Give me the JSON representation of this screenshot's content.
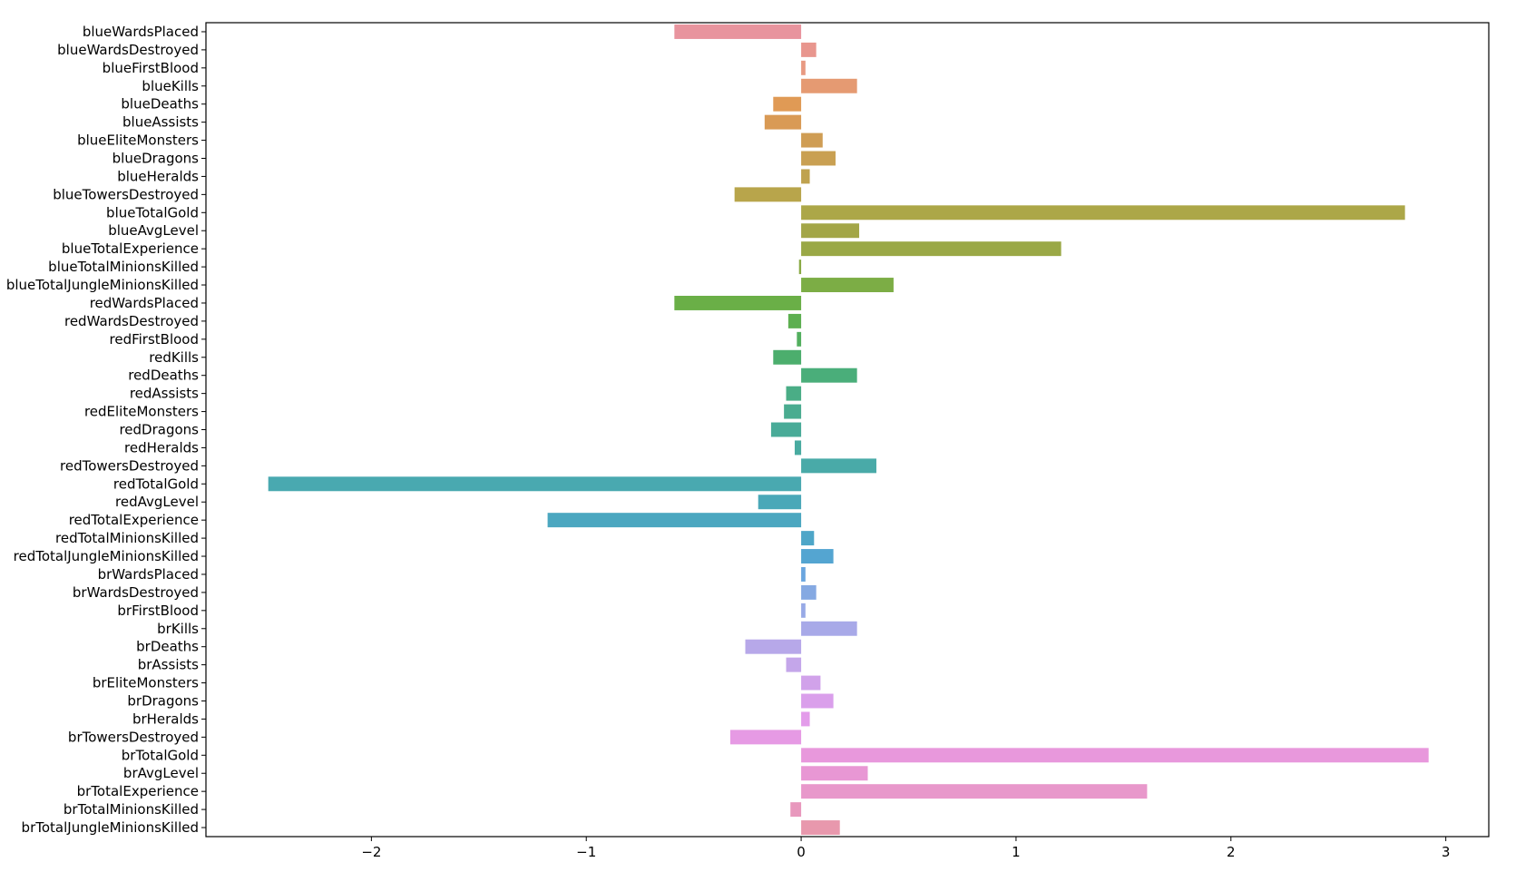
{
  "chart_data": {
    "type": "bar",
    "orientation": "horizontal",
    "title": "",
    "xlabel": "",
    "ylabel": "",
    "xlim": [
      -2.77,
      3.2
    ],
    "xticks": [
      -2,
      -1,
      0,
      1,
      2,
      3
    ],
    "xtick_labels": [
      "−2",
      "−1",
      "0",
      "1",
      "2",
      "3"
    ],
    "grid": false,
    "legend": "none",
    "categories": [
      "blueWardsPlaced",
      "blueWardsDestroyed",
      "blueFirstBlood",
      "blueKills",
      "blueDeaths",
      "blueAssists",
      "blueEliteMonsters",
      "blueDragons",
      "blueHeralds",
      "blueTowersDestroyed",
      "blueTotalGold",
      "blueAvgLevel",
      "blueTotalExperience",
      "blueTotalMinionsKilled",
      "blueTotalJungleMinionsKilled",
      "redWardsPlaced",
      "redWardsDestroyed",
      "redFirstBlood",
      "redKills",
      "redDeaths",
      "redAssists",
      "redEliteMonsters",
      "redDragons",
      "redHeralds",
      "redTowersDestroyed",
      "redTotalGold",
      "redAvgLevel",
      "redTotalExperience",
      "redTotalMinionsKilled",
      "redTotalJungleMinionsKilled",
      "brWardsPlaced",
      "brWardsDestroyed",
      "brFirstBlood",
      "brKills",
      "brDeaths",
      "brAssists",
      "brEliteMonsters",
      "brDragons",
      "brHeralds",
      "brTowersDestroyed",
      "brTotalGold",
      "brAvgLevel",
      "brTotalExperience",
      "brTotalMinionsKilled",
      "brTotalJungleMinionsKilled"
    ],
    "values": [
      -0.59,
      0.07,
      0.02,
      0.26,
      -0.13,
      -0.17,
      0.1,
      0.16,
      0.04,
      -0.31,
      2.81,
      0.27,
      1.21,
      -0.01,
      0.43,
      -0.59,
      -0.06,
      -0.02,
      -0.13,
      0.26,
      -0.07,
      -0.08,
      -0.14,
      -0.03,
      0.35,
      -2.48,
      -0.2,
      -1.18,
      0.06,
      0.15,
      0.02,
      0.07,
      0.02,
      0.26,
      -0.26,
      -0.07,
      0.09,
      0.15,
      0.04,
      -0.33,
      2.92,
      0.31,
      1.61,
      -0.05,
      0.18
    ],
    "colors": [
      "#e8949e",
      "#e8968e",
      "#e89a82",
      "#e59a72",
      "#e09a55",
      "#d99a55",
      "#cf9d54",
      "#c9a052",
      "#bfa24f",
      "#b8a54b",
      "#aca748",
      "#a3a647",
      "#9aa846",
      "#8aaa45",
      "#7cad45",
      "#6aaf47",
      "#5daf50",
      "#52af5e",
      "#4cae6d",
      "#4aae7a",
      "#4aad86",
      "#4aac90",
      "#49ab98",
      "#49aba0",
      "#49aaa8",
      "#49a9b0",
      "#4aa8b8",
      "#4ba7c0",
      "#4ea6c8",
      "#54a5d1",
      "#6aa6df",
      "#85a9e2",
      "#98aae6",
      "#a8a9e8",
      "#b7a8e9",
      "#c4a6ea",
      "#d1a2ea",
      "#da9feb",
      "#e39cea",
      "#e69ae4",
      "#e898dc",
      "#e897d4",
      "#e898cb",
      "#e898bd",
      "#e898ad"
    ]
  }
}
